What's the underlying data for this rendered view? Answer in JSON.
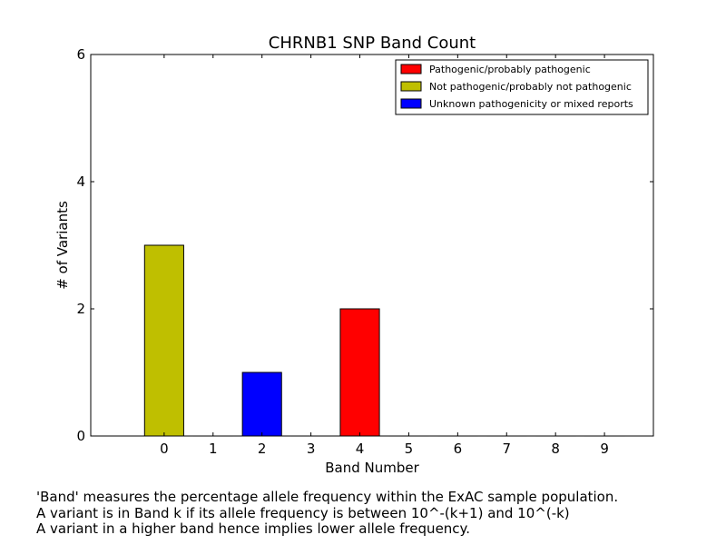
{
  "chart_data": {
    "type": "bar",
    "title": "CHRNB1 SNP Band Count",
    "xlabel": "Band Number",
    "ylabel": "# of Variants",
    "ylim": [
      0,
      6
    ],
    "xlim": [
      -1.5,
      10
    ],
    "yticks": [
      0,
      2,
      4,
      6
    ],
    "categories": [
      "0",
      "1",
      "2",
      "3",
      "4",
      "5",
      "6",
      "7",
      "8",
      "9"
    ],
    "series": [
      {
        "name": "Pathogenic/probably pathogenic",
        "color": "#ff0000",
        "values": [
          0,
          0,
          0,
          0,
          2,
          0,
          0,
          0,
          0,
          0
        ]
      },
      {
        "name": "Not pathogenic/probably not pathogenic",
        "color": "#bfbf00",
        "values": [
          3,
          0,
          0,
          0,
          0,
          0,
          0,
          0,
          0,
          0
        ]
      },
      {
        "name": "Unknown pathogenicity or mixed reports",
        "color": "#0000ff",
        "values": [
          0,
          0,
          1,
          0,
          0,
          0,
          0,
          0,
          0,
          0
        ]
      }
    ],
    "legend_position": "top-right",
    "grid": false
  },
  "caption": {
    "lines": [
      "'Band' measures the percentage allele frequency within the ExAC sample population.",
      "A variant is in Band k if its allele frequency is between 10^-(k+1) and 10^(-k)",
      "A variant in a higher band hence implies lower allele frequency."
    ]
  }
}
